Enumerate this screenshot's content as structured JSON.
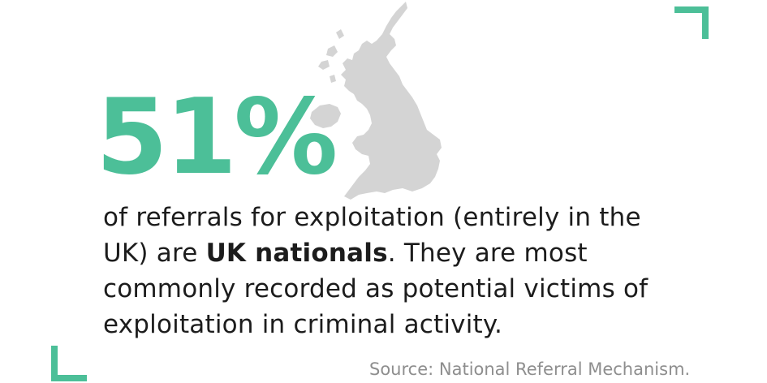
{
  "stat": {
    "value": "51%"
  },
  "description": {
    "before": "of referrals for exploitation (entirely in the UK) are ",
    "highlight": "UK nationals",
    "after": ". They are most commonly recorded as potential victims of exploitation in criminal activity."
  },
  "source": "Source: National Referral Mechanism.",
  "colors": {
    "accent": "#4cbf98",
    "map": "#d4d4d4",
    "text": "#1c1c1c",
    "source_text": "#8e8e8e"
  },
  "icons": {
    "map": "uk-map-icon",
    "corner_top_right": "corner-bracket-icon",
    "corner_bottom_left": "corner-bracket-icon"
  }
}
